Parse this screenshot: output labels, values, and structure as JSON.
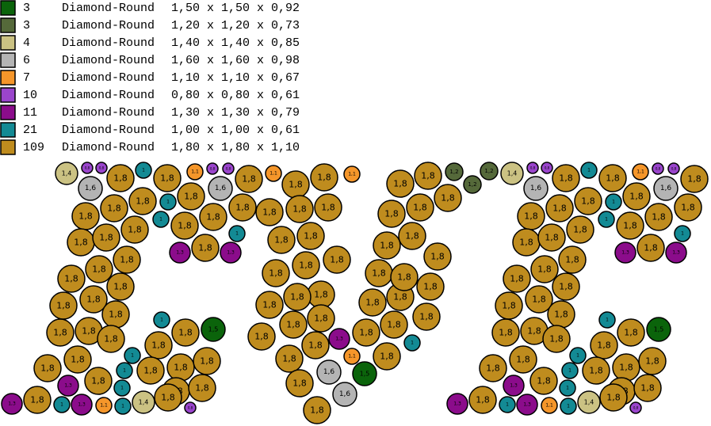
{
  "legend": {
    "rows": [
      {
        "color": "#0b640b",
        "count": 3,
        "shape": "Diamond-Round",
        "size": "1,50 x 1,50 x 0,92",
        "label": "1,5"
      },
      {
        "color": "#55693a",
        "count": 3,
        "shape": "Diamond-Round",
        "size": "1,20 x 1,20 x 0,73",
        "label": "1,2"
      },
      {
        "color": "#cbc283",
        "count": 4,
        "shape": "Diamond-Round",
        "size": "1,40 x 1,40 x 0,85",
        "label": "1,4"
      },
      {
        "color": "#b4b4b4",
        "count": 6,
        "shape": "Diamond-Round",
        "size": "1,60 x 1,60 x 0,98",
        "label": "1,6"
      },
      {
        "color": "#f5962a",
        "count": 7,
        "shape": "Diamond-Round",
        "size": "1,10 x 1,10 x 0,67",
        "label": "1,1"
      },
      {
        "color": "#9a45cc",
        "count": 10,
        "shape": "Diamond-Round",
        "size": "0,80 x 0,80 x 0,61",
        "label": "0,8"
      },
      {
        "color": "#8b0c8b",
        "count": 11,
        "shape": "Diamond-Round",
        "size": "1,30 x 1,30 x 0,79",
        "label": "1,3"
      },
      {
        "color": "#138a94",
        "count": 21,
        "shape": "Diamond-Round",
        "size": "1,00 x 1,00 x 0,61",
        "label": "1"
      },
      {
        "color": "#bf8c1e",
        "count": 109,
        "shape": "Diamond-Round",
        "size": "1,80 x 1,80 x 1,10",
        "label": "1,8"
      }
    ]
  }
}
